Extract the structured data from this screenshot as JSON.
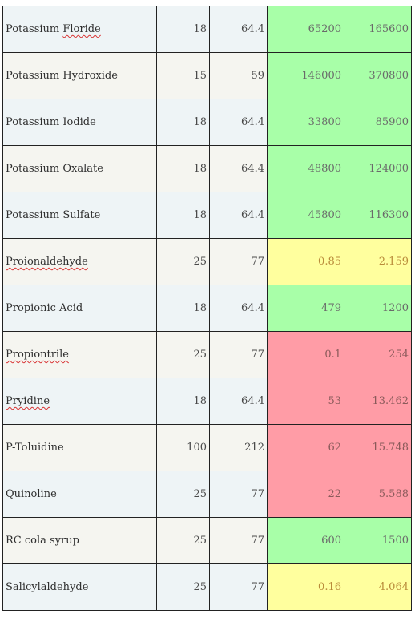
{
  "rows": [
    {
      "name_pre": "Potassium ",
      "name_err": "Floride",
      "name_post": "",
      "c1": "18",
      "c2": "64.4",
      "c3": "65200",
      "c4": "165600",
      "rating": "green"
    },
    {
      "name_pre": "Potassium Hydroxide",
      "name_err": "",
      "name_post": "",
      "c1": "15",
      "c2": "59",
      "c3": "146000",
      "c4": "370800",
      "rating": "green"
    },
    {
      "name_pre": "Potassium Iodide",
      "name_err": "",
      "name_post": "",
      "c1": "18",
      "c2": "64.4",
      "c3": "33800",
      "c4": "85900",
      "rating": "green"
    },
    {
      "name_pre": "Potassium Oxalate",
      "name_err": "",
      "name_post": "",
      "c1": "18",
      "c2": "64.4",
      "c3": "48800",
      "c4": "124000",
      "rating": "green"
    },
    {
      "name_pre": "Potassium Sulfate",
      "name_err": "",
      "name_post": "",
      "c1": "18",
      "c2": "64.4",
      "c3": "45800",
      "c4": "116300",
      "rating": "green"
    },
    {
      "name_pre": "",
      "name_err": "Proionaldehyde",
      "name_post": "",
      "c1": "25",
      "c2": "77",
      "c3": "0.85",
      "c4": "2.159",
      "rating": "yellow"
    },
    {
      "name_pre": "Propionic Acid",
      "name_err": "",
      "name_post": "",
      "c1": "18",
      "c2": "64.4",
      "c3": "479",
      "c4": "1200",
      "rating": "green"
    },
    {
      "name_pre": "",
      "name_err": "Propiontrile",
      "name_post": "",
      "c1": "25",
      "c2": "77",
      "c3": "0.1",
      "c4": "254",
      "rating": "red"
    },
    {
      "name_pre": "",
      "name_err": "Pryidine",
      "name_post": "",
      "c1": "18",
      "c2": "64.4",
      "c3": "53",
      "c4": "13.462",
      "rating": "red"
    },
    {
      "name_pre": "P-Toluidine",
      "name_err": "",
      "name_post": "",
      "c1": "100",
      "c2": "212",
      "c3": "62",
      "c4": "15.748",
      "rating": "red"
    },
    {
      "name_pre": "Quinoline",
      "name_err": "",
      "name_post": "",
      "c1": "25",
      "c2": "77",
      "c3": "22",
      "c4": "5.588",
      "rating": "red"
    },
    {
      "name_pre": "RC cola syrup",
      "name_err": "",
      "name_post": "",
      "c1": "25",
      "c2": "77",
      "c3": "600",
      "c4": "1500",
      "rating": "green"
    },
    {
      "name_pre": "Salicylaldehyde",
      "name_err": "",
      "name_post": "",
      "c1": "25",
      "c2": "77",
      "c3": "0.16",
      "c4": "4.064",
      "rating": "yellow"
    }
  ],
  "rating_colors": {
    "green": "#a8ffa8",
    "yellow": "#ffff9e",
    "red": "#ff9ca6"
  },
  "spellcheck_underline_color": "#d83333"
}
